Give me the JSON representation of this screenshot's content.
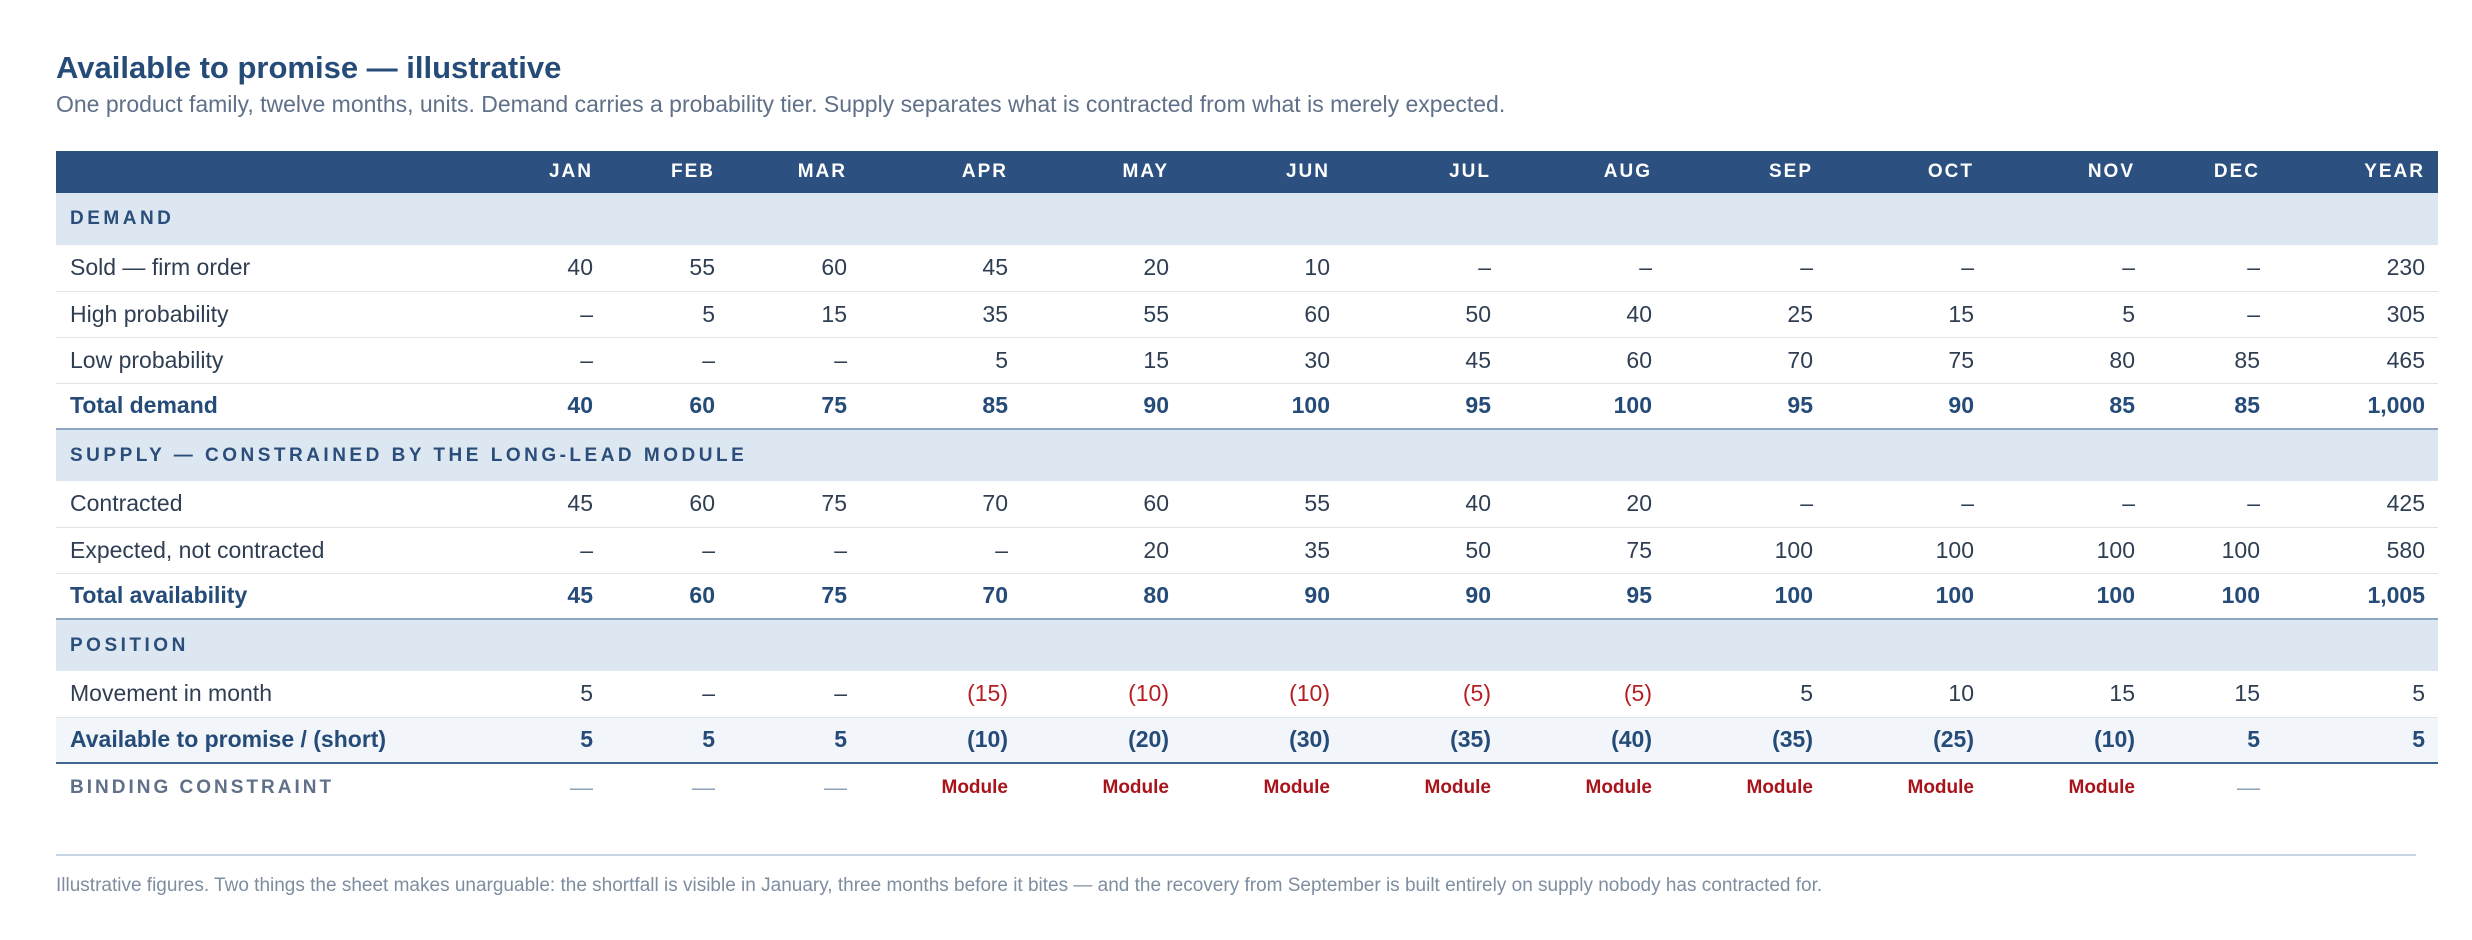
{
  "title": "Available to promise — illustrative",
  "subtitle": "One product family, twelve months, units. Demand carries a probability tier. Supply separates what is contracted from what is merely expected.",
  "columns": [
    "JAN",
    "FEB",
    "MAR",
    "APR",
    "MAY",
    "JUN",
    "JUL",
    "AUG",
    "SEP",
    "OCT",
    "NOV",
    "DEC",
    "YEAR"
  ],
  "sections": {
    "demand": "DEMAND",
    "supply": "SUPPLY — CONSTRAINED BY THE LONG-LEAD MODULE",
    "position": "POSITION"
  },
  "rows": {
    "sold_firm": {
      "label": "Sold — firm order",
      "values": [
        "40",
        "55",
        "60",
        "45",
        "20",
        "10",
        "–",
        "–",
        "–",
        "–",
        "–",
        "–",
        "230"
      ]
    },
    "high_prob": {
      "label": "High probability",
      "values": [
        "–",
        "5",
        "15",
        "35",
        "55",
        "60",
        "50",
        "40",
        "25",
        "15",
        "5",
        "–",
        "305"
      ]
    },
    "low_prob": {
      "label": "Low probability",
      "values": [
        "–",
        "–",
        "–",
        "5",
        "15",
        "30",
        "45",
        "60",
        "70",
        "75",
        "80",
        "85",
        "465"
      ]
    },
    "total_demand": {
      "label": "Total demand",
      "values": [
        "40",
        "60",
        "75",
        "85",
        "90",
        "100",
        "95",
        "100",
        "95",
        "90",
        "85",
        "85",
        "1,000"
      ]
    },
    "contracted": {
      "label": "Contracted",
      "values": [
        "45",
        "60",
        "75",
        "70",
        "60",
        "55",
        "40",
        "20",
        "–",
        "–",
        "–",
        "–",
        "425"
      ]
    },
    "expected": {
      "label": "Expected, not contracted",
      "values": [
        "–",
        "–",
        "–",
        "–",
        "20",
        "35",
        "50",
        "75",
        "100",
        "100",
        "100",
        "100",
        "580"
      ]
    },
    "total_avail": {
      "label": "Total availability",
      "values": [
        "45",
        "60",
        "75",
        "70",
        "80",
        "90",
        "90",
        "95",
        "100",
        "100",
        "100",
        "100",
        "1,005"
      ]
    },
    "movement": {
      "label": "Movement in month",
      "values": [
        "5",
        "–",
        "–",
        "(15)",
        "(10)",
        "(10)",
        "(5)",
        "(5)",
        "5",
        "10",
        "15",
        "15",
        "5"
      ]
    },
    "atp": {
      "label": "Available to promise / (short)",
      "values": [
        "5",
        "5",
        "5",
        "(10)",
        "(20)",
        "(30)",
        "(35)",
        "(40)",
        "(35)",
        "(25)",
        "(10)",
        "5",
        "5"
      ]
    },
    "binding": {
      "label": "BINDING CONSTRAINT",
      "values": [
        "—",
        "—",
        "—",
        "Module",
        "Module",
        "Module",
        "Module",
        "Module",
        "Module",
        "Module",
        "Module",
        "—",
        ""
      ]
    }
  },
  "footnote": "Illustrative figures. Two things the sheet makes unarguable: the shortfall is visible in January, three months before it bites — and the recovery from September is built entirely on supply nobody has contracted for.",
  "colors": {
    "header_bg": "#2c5180",
    "section_bg": "#dde7f2",
    "title": "#254b78",
    "negative": "#b51f24"
  }
}
